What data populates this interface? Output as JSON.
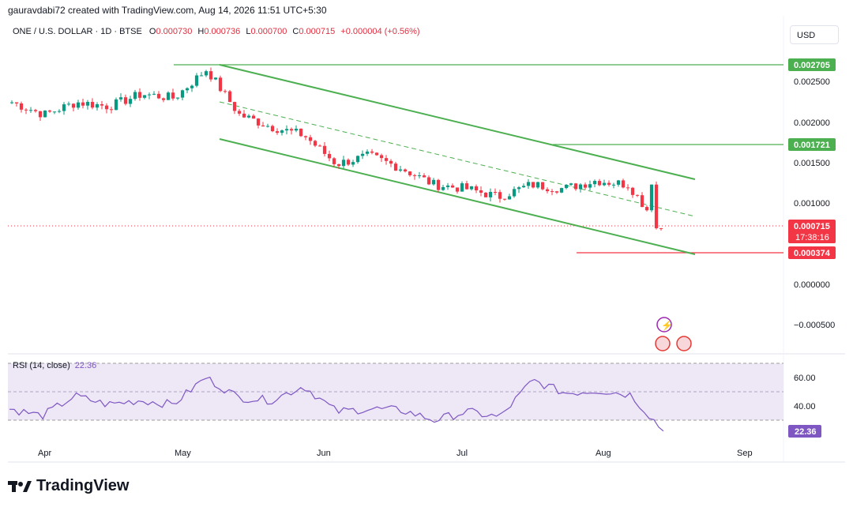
{
  "header": {
    "credit": "gauravdabi72 created with TradingView.com, Aug 14, 2026 11:51 UTC+5:30"
  },
  "legend": {
    "symbol": "ONE / U.S. DOLLAR · 1D · BTSE",
    "o_label": "O",
    "o_value": "0.000730",
    "h_label": "H",
    "h_value": "0.000736",
    "l_label": "L",
    "l_value": "0.000700",
    "c_label": "C",
    "c_value": "0.000715",
    "change": "+0.000004 (+0.56%)"
  },
  "currency": "USD",
  "price_axis": {
    "ticks": [
      "0.002500",
      "0.002000",
      "0.001500",
      "0.001000",
      "0.000000",
      "−0.000500"
    ],
    "badges": {
      "top": "0.002705",
      "mid": "0.001721",
      "current": "0.000715",
      "countdown": "17:38:16",
      "low": "0.000374"
    }
  },
  "rsi": {
    "title": "RSI (14, close)",
    "value": "22.36",
    "ticks": [
      "60.00",
      "40.00"
    ],
    "badge": "22.36"
  },
  "time_axis": [
    "Apr",
    "May",
    "Jun",
    "Jul",
    "Aug",
    "Sep"
  ],
  "brand": "TradingView",
  "colors": {
    "up": "#089981",
    "down": "#f23645",
    "channel": "#4caf50",
    "rsi_line": "#7e57c2",
    "rsi_band": "#ede7f6"
  },
  "chart_data": {
    "type": "line",
    "title": "ONE / U.S. DOLLAR · 1D · BTSE",
    "ylabel": "USD",
    "ylim": [
      -0.00055,
      0.00285
    ],
    "series": [
      {
        "name": "close",
        "x": [
          "Mar 29",
          "Apr 5",
          "Apr 12",
          "Apr 19",
          "Apr 26",
          "May 3",
          "May 10",
          "May 17",
          "May 24",
          "May 31",
          "Jun 7",
          "Jun 14",
          "Jun 21",
          "Jun 28",
          "Jul 5",
          "Jul 12",
          "Jul 19",
          "Jul 26",
          "Aug 2",
          "Aug 9",
          "Aug 14"
        ],
        "values": [
          0.00225,
          0.0021,
          0.00225,
          0.0022,
          0.00235,
          0.0023,
          0.00265,
          0.0021,
          0.00195,
          0.00185,
          0.0015,
          0.0016,
          0.00145,
          0.00125,
          0.0012,
          0.0011,
          0.00125,
          0.0012,
          0.0013,
          0.00125,
          0.000715
        ]
      }
    ],
    "annotations": {
      "resistance_top": 0.002705,
      "resistance_mid": 0.001721,
      "support_target": 0.000374
    },
    "rsi": {
      "ylim": [
        20,
        70
      ],
      "levels": [
        30,
        50,
        70
      ],
      "values": [
        38,
        33,
        47,
        41,
        44,
        41,
        60,
        46,
        44,
        54,
        36,
        38,
        37,
        30,
        36,
        32,
        58,
        49,
        51,
        48,
        22.36
      ]
    }
  }
}
